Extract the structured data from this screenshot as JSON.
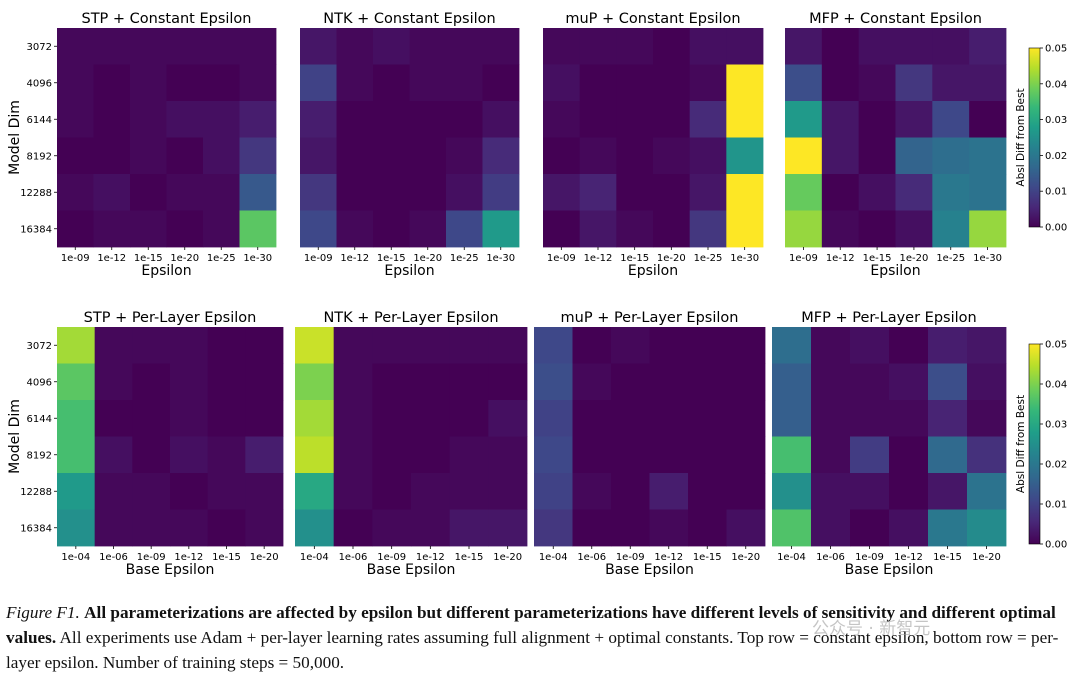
{
  "figure": {
    "caption_label": "Figure F1.",
    "caption_bold": "All parameterizations are affected by epsilon but different parameterizations have different levels of sensitivity and different optimal values.",
    "caption_rest": "All experiments use Adam + per-layer learning rates assuming full alignment + optimal constants. Top row = constant epsilon, bottom row = per-layer epsilon. Number of training steps = 50,000.",
    "watermark": "公众号 · 新智元"
  },
  "colors": {
    "colormap": "viridis",
    "viridis_stops": [
      "#440154",
      "#482878",
      "#3e4989",
      "#31688e",
      "#26828e",
      "#1f9e89",
      "#35b779",
      "#6ece58",
      "#b5de2b",
      "#fde725"
    ]
  },
  "chart_data": [
    {
      "type": "heatmap",
      "row": "top",
      "title": "STP + Constant Epsilon",
      "xlabel": "Epsilon",
      "ylabel": "Model Dim",
      "x": [
        "1e-09",
        "1e-12",
        "1e-15",
        "1e-20",
        "1e-25",
        "1e-30"
      ],
      "y": [
        "3072",
        "4096",
        "6144",
        "8192",
        "12288",
        "16384"
      ],
      "z": [
        [
          0.001,
          0.001,
          0.001,
          0.001,
          0.001,
          0.001
        ],
        [
          0.001,
          0.0,
          0.001,
          0.0,
          0.0,
          0.001
        ],
        [
          0.001,
          0.0,
          0.001,
          0.002,
          0.002,
          0.004
        ],
        [
          0.0,
          0.0,
          0.001,
          0.0,
          0.002,
          0.008
        ],
        [
          0.001,
          0.002,
          0.0,
          0.001,
          0.001,
          0.014
        ],
        [
          0.0,
          0.001,
          0.001,
          0.0,
          0.001,
          0.037
        ]
      ],
      "vmin": 0.0,
      "vmax": 0.05
    },
    {
      "type": "heatmap",
      "row": "top",
      "title": "NTK + Constant Epsilon",
      "xlabel": "Epsilon",
      "x": [
        "1e-09",
        "1e-12",
        "1e-15",
        "1e-20",
        "1e-25",
        "1e-30"
      ],
      "y": [
        "3072",
        "4096",
        "6144",
        "8192",
        "12288",
        "16384"
      ],
      "z": [
        [
          0.003,
          0.001,
          0.002,
          0.001,
          0.001,
          0.001
        ],
        [
          0.01,
          0.001,
          0.0,
          0.001,
          0.001,
          0.0
        ],
        [
          0.004,
          0.0,
          0.0,
          0.0,
          0.0,
          0.002
        ],
        [
          0.003,
          0.0,
          0.0,
          0.0,
          0.001,
          0.006
        ],
        [
          0.008,
          0.0,
          0.0,
          0.0,
          0.002,
          0.009
        ],
        [
          0.011,
          0.001,
          0.0,
          0.001,
          0.011,
          0.027
        ]
      ],
      "vmin": 0.0,
      "vmax": 0.05
    },
    {
      "type": "heatmap",
      "row": "top",
      "title": "muP + Constant Epsilon",
      "xlabel": "Epsilon",
      "x": [
        "1e-09",
        "1e-12",
        "1e-15",
        "1e-20",
        "1e-25",
        "1e-30"
      ],
      "y": [
        "3072",
        "4096",
        "6144",
        "8192",
        "12288",
        "16384"
      ],
      "z": [
        [
          0.001,
          0.001,
          0.001,
          0.0,
          0.002,
          0.002
        ],
        [
          0.002,
          0.0,
          0.0,
          0.0,
          0.001,
          0.05
        ],
        [
          0.001,
          0.0,
          0.0,
          0.0,
          0.006,
          0.05
        ],
        [
          0.0,
          0.001,
          0.0,
          0.001,
          0.002,
          0.026
        ],
        [
          0.003,
          0.005,
          0.0,
          0.0,
          0.003,
          0.05
        ],
        [
          0.0,
          0.003,
          0.001,
          0.0,
          0.008,
          0.05
        ]
      ],
      "vmin": 0.0,
      "vmax": 0.05
    },
    {
      "type": "heatmap",
      "row": "top",
      "title": "MFP + Constant Epsilon",
      "xlabel": "Epsilon",
      "x": [
        "1e-09",
        "1e-12",
        "1e-15",
        "1e-20",
        "1e-25",
        "1e-30"
      ],
      "y": [
        "3072",
        "4096",
        "6144",
        "8192",
        "12288",
        "16384"
      ],
      "z": [
        [
          0.003,
          0.0,
          0.002,
          0.002,
          0.002,
          0.004
        ],
        [
          0.012,
          0.0,
          0.001,
          0.008,
          0.003,
          0.003
        ],
        [
          0.027,
          0.003,
          0.0,
          0.003,
          0.011,
          0.0
        ],
        [
          0.05,
          0.003,
          0.0,
          0.016,
          0.018,
          0.019
        ],
        [
          0.038,
          0.0,
          0.002,
          0.006,
          0.02,
          0.019
        ],
        [
          0.042,
          0.001,
          0.0,
          0.002,
          0.022,
          0.042
        ]
      ],
      "vmin": 0.0,
      "vmax": 0.05
    },
    {
      "type": "heatmap",
      "row": "bottom",
      "title": "STP + Per-Layer Epsilon",
      "xlabel": "Base Epsilon",
      "ylabel": "Model Dim",
      "x": [
        "1e-04",
        "1e-06",
        "1e-09",
        "1e-12",
        "1e-15",
        "1e-20"
      ],
      "y": [
        "3072",
        "4096",
        "6144",
        "8192",
        "12288",
        "16384"
      ],
      "z": [
        [
          0.043,
          0.001,
          0.001,
          0.001,
          0.0,
          0.0
        ],
        [
          0.037,
          0.001,
          0.0,
          0.001,
          0.0,
          0.0
        ],
        [
          0.035,
          0.0,
          0.0,
          0.001,
          0.0,
          0.0
        ],
        [
          0.035,
          0.002,
          0.0,
          0.002,
          0.001,
          0.004
        ],
        [
          0.027,
          0.001,
          0.001,
          0.0,
          0.001,
          0.001
        ],
        [
          0.025,
          0.001,
          0.001,
          0.001,
          0.0,
          0.001
        ]
      ],
      "vmin": 0.0,
      "vmax": 0.05
    },
    {
      "type": "heatmap",
      "row": "bottom",
      "title": "NTK + Per-Layer Epsilon",
      "xlabel": "Base Epsilon",
      "x": [
        "1e-04",
        "1e-06",
        "1e-09",
        "1e-12",
        "1e-15",
        "1e-20"
      ],
      "y": [
        "3072",
        "4096",
        "6144",
        "8192",
        "12288",
        "16384"
      ],
      "z": [
        [
          0.046,
          0.001,
          0.001,
          0.001,
          0.001,
          0.001
        ],
        [
          0.04,
          0.001,
          0.0,
          0.0,
          0.0,
          0.0
        ],
        [
          0.043,
          0.001,
          0.0,
          0.0,
          0.0,
          0.002
        ],
        [
          0.045,
          0.001,
          0.0,
          0.0,
          0.001,
          0.001
        ],
        [
          0.03,
          0.001,
          0.0,
          0.001,
          0.001,
          0.001
        ],
        [
          0.025,
          0.0,
          0.001,
          0.001,
          0.003,
          0.003
        ]
      ],
      "vmin": 0.0,
      "vmax": 0.05
    },
    {
      "type": "heatmap",
      "row": "bottom",
      "title": "muP + Per-Layer Epsilon",
      "xlabel": "Base Epsilon",
      "x": [
        "1e-04",
        "1e-06",
        "1e-09",
        "1e-12",
        "1e-15",
        "1e-20"
      ],
      "y": [
        "3072",
        "4096",
        "6144",
        "8192",
        "12288",
        "16384"
      ],
      "z": [
        [
          0.011,
          0.0,
          0.001,
          0.0,
          0.0,
          0.0
        ],
        [
          0.012,
          0.001,
          0.0,
          0.0,
          0.0,
          0.0
        ],
        [
          0.01,
          0.0,
          0.0,
          0.0,
          0.0,
          0.0
        ],
        [
          0.011,
          0.0,
          0.0,
          0.0,
          0.0,
          0.0
        ],
        [
          0.01,
          0.001,
          0.0,
          0.004,
          0.0,
          0.0
        ],
        [
          0.008,
          0.0,
          0.0,
          0.001,
          0.0,
          0.002
        ]
      ],
      "vmin": 0.0,
      "vmax": 0.05
    },
    {
      "type": "heatmap",
      "row": "bottom",
      "title": "MFP + Per-Layer Epsilon",
      "xlabel": "Base Epsilon",
      "x": [
        "1e-04",
        "1e-06",
        "1e-09",
        "1e-12",
        "1e-15",
        "1e-20"
      ],
      "y": [
        "3072",
        "4096",
        "6144",
        "8192",
        "12288",
        "16384"
      ],
      "z": [
        [
          0.018,
          0.001,
          0.002,
          0.0,
          0.004,
          0.003
        ],
        [
          0.015,
          0.001,
          0.001,
          0.002,
          0.012,
          0.002
        ],
        [
          0.015,
          0.001,
          0.001,
          0.001,
          0.005,
          0.001
        ],
        [
          0.035,
          0.001,
          0.009,
          0.0,
          0.017,
          0.007
        ],
        [
          0.025,
          0.002,
          0.002,
          0.0,
          0.003,
          0.019
        ],
        [
          0.036,
          0.002,
          0.0,
          0.002,
          0.02,
          0.024
        ]
      ],
      "vmin": 0.0,
      "vmax": 0.05
    }
  ],
  "colorbars": [
    {
      "row": "top",
      "label": "Absl Diff from Best",
      "ticks": [
        "0.05",
        "0.04",
        "0.03",
        "0.02",
        "0.01",
        "0.00"
      ],
      "vmin": 0.0,
      "vmax": 0.05
    },
    {
      "row": "bottom",
      "label": "Absl Diff from Best",
      "ticks": [
        "0.05",
        "0.04",
        "0.03",
        "0.02",
        "0.01",
        "0.00"
      ],
      "vmin": 0.0,
      "vmax": 0.05
    }
  ]
}
